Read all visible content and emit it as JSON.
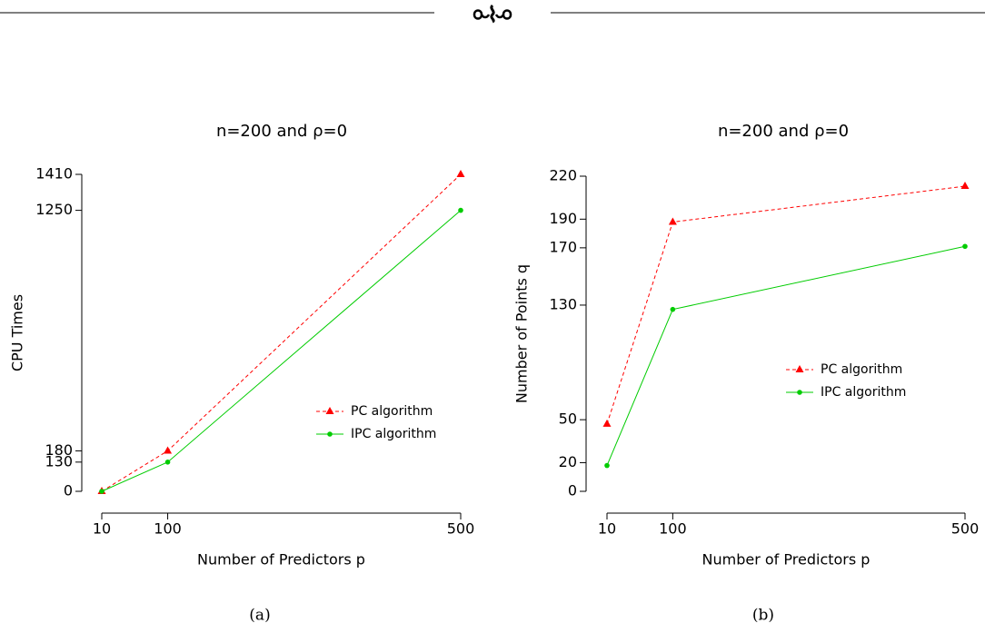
{
  "chart_data": [
    {
      "type": "line",
      "title": "n=200 and ρ=0",
      "x_label": "Number of Predictors  p",
      "y_label": "CPU Times",
      "x": [
        10,
        100,
        500
      ],
      "xlim": [
        10,
        500
      ],
      "xticks": [
        10,
        100,
        500
      ],
      "ylim": [
        0,
        1410
      ],
      "yticks": [
        0,
        130,
        180,
        1250,
        1410
      ],
      "legend": "bottom right",
      "series": [
        {
          "name": "PC algorithm",
          "color": "#ff0000",
          "values": [
            0,
            180,
            1410
          ]
        },
        {
          "name": "IPC algorithm",
          "color": "#00cc00",
          "values": [
            0,
            130,
            1250
          ]
        }
      ]
    },
    {
      "type": "line",
      "title": "n=200 and ρ=0",
      "x_label": "Number of Predictors  p",
      "y_label": "Number of Points  q",
      "x": [
        10,
        100,
        500
      ],
      "xlim": [
        10,
        500
      ],
      "xticks": [
        10,
        100,
        500
      ],
      "ylim": [
        0,
        220
      ],
      "yticks": [
        0,
        20,
        50,
        130,
        170,
        190,
        220
      ],
      "legend": "center right",
      "series": [
        {
          "name": "PC algorithm",
          "color": "#ff0000",
          "values": [
            47,
            188,
            213
          ]
        },
        {
          "name": "IPC algorithm",
          "color": "#00cc00",
          "values": [
            18,
            127,
            171
          ]
        }
      ]
    }
  ],
  "captions": [
    "(a)",
    "(b)"
  ]
}
